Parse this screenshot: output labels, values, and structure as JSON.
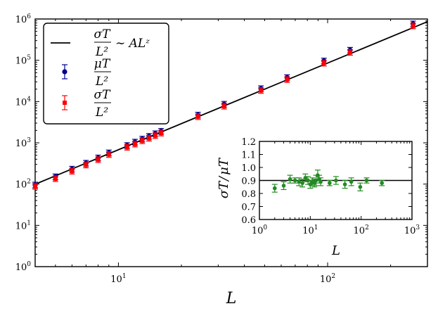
{
  "chart_data": [
    {
      "type": "scatter",
      "xscale": "log",
      "yscale": "log",
      "xlim": [
        4,
        300
      ],
      "ylim": [
        1,
        1000000
      ],
      "xlabel": "L",
      "xticks": [
        {
          "value": 10,
          "base": "10",
          "exp": "1"
        },
        {
          "value": 100,
          "base": "10",
          "exp": "2"
        }
      ],
      "yticks": [
        {
          "value": 1,
          "base": "10",
          "exp": "0"
        },
        {
          "value": 10,
          "base": "10",
          "exp": "1"
        },
        {
          "value": 100,
          "base": "10",
          "exp": "2"
        },
        {
          "value": 1000,
          "base": "10",
          "exp": "3"
        },
        {
          "value": 10000,
          "base": "10",
          "exp": "4"
        },
        {
          "value": 100000,
          "base": "10",
          "exp": "5"
        },
        {
          "value": 1000000,
          "base": "10",
          "exp": "6"
        }
      ],
      "legend": {
        "position": "top-left",
        "entries": [
          {
            "label": "σ_T / L² ~ AL^z",
            "num": "σT",
            "den": "L²",
            "suffix": "∼ ALᶻ"
          },
          {
            "label": "μ_T / L²",
            "num": "μT",
            "den": "L²"
          },
          {
            "label": "σ_T / L²",
            "num": "σT",
            "den": "L²"
          }
        ]
      },
      "fit": {
        "name": "σ_T / L² ~ AL^z",
        "A": 5.4,
        "z": 2.1,
        "color": "#000000"
      },
      "series": [
        {
          "name": "μ_T / L²",
          "color": "#00008b",
          "marker": "circle",
          "x": [
            4,
            5,
            6,
            7,
            8,
            9,
            11,
            12,
            13,
            14,
            15,
            16,
            24,
            32,
            48,
            64,
            96,
            128,
            256
          ],
          "y": [
            95,
            150,
            230,
            320,
            430,
            570,
            860,
            1040,
            1230,
            1430,
            1660,
            1900,
            4700,
            8600,
            20500,
            38000,
            96000,
            175000,
            760000
          ]
        },
        {
          "name": "σ_T / L²",
          "color": "#ff0000",
          "marker": "square",
          "x": [
            4,
            5,
            6,
            7,
            8,
            9,
            11,
            12,
            13,
            14,
            15,
            16,
            24,
            32,
            48,
            64,
            96,
            128,
            256
          ],
          "y": [
            88,
            135,
            205,
            290,
            390,
            520,
            780,
            930,
            1120,
            1290,
            1490,
            1720,
            4300,
            7700,
            18500,
            34000,
            85000,
            155000,
            680000
          ]
        }
      ]
    },
    {
      "type": "scatter",
      "xscale": "log",
      "yscale": "linear",
      "xlim": [
        1,
        1000
      ],
      "ylim": [
        0.6,
        1.2
      ],
      "xlabel": "L",
      "ylabel": "σ_T / μ_T",
      "ylabel_num": "σT",
      "ylabel_den": "μT",
      "xticks": [
        {
          "value": 1,
          "base": "10",
          "exp": "0"
        },
        {
          "value": 10,
          "base": "10",
          "exp": "1"
        },
        {
          "value": 100,
          "base": "10",
          "exp": "2"
        },
        {
          "value": 1000,
          "base": "10",
          "exp": "3"
        }
      ],
      "yticks": [
        "0.6",
        "0.7",
        "0.8",
        "0.9",
        "1.0",
        "1.1",
        "1.2"
      ],
      "reference_line": 0.9,
      "series": [
        {
          "name": "σ_T / μ_T",
          "color": "#228b22",
          "marker": "circle",
          "x": [
            2,
            3,
            4,
            5,
            6,
            7,
            8,
            9,
            10,
            11,
            12,
            13,
            14,
            15,
            16,
            24,
            32,
            48,
            64,
            96,
            128,
            256
          ],
          "y": [
            0.84,
            0.86,
            0.91,
            0.9,
            0.89,
            0.88,
            0.92,
            0.9,
            0.87,
            0.89,
            0.88,
            0.9,
            0.94,
            0.91,
            0.89,
            0.88,
            0.9,
            0.87,
            0.89,
            0.85,
            0.9,
            0.88
          ],
          "err": [
            0.03,
            0.03,
            0.03,
            0.02,
            0.03,
            0.03,
            0.03,
            0.03,
            0.03,
            0.03,
            0.03,
            0.04,
            0.04,
            0.03,
            0.03,
            0.02,
            0.03,
            0.03,
            0.03,
            0.03,
            0.02,
            0.02
          ]
        }
      ]
    }
  ]
}
